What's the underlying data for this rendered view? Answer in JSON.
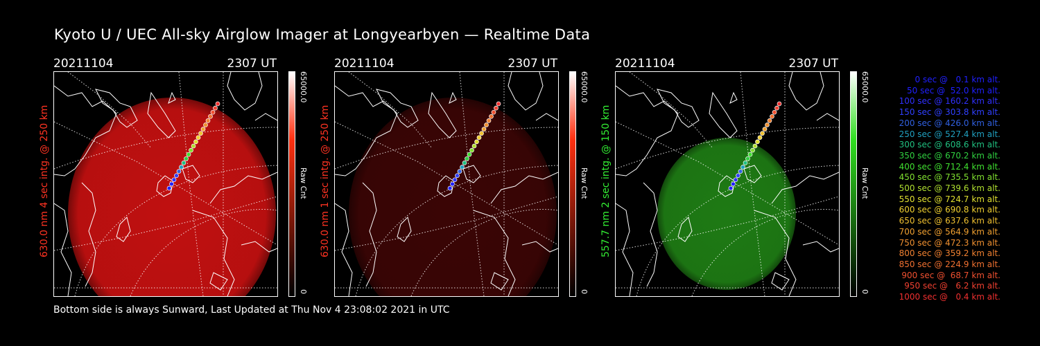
{
  "title": "Kyoto U / UEC All-sky Airglow Imager at Longyearbyen — Realtime Data",
  "footer": "Bottom side is always Sunward, Last Updated at Thu Nov  4 23:08:02 2021 in UTC",
  "panels": [
    {
      "date": "20211104",
      "time": "2307 UT",
      "ylabel": "630.0 nm 4 sec intg. @ 250 km",
      "ylabel_color": "#ff3322",
      "cbar_max": "65000.0",
      "cbar_min": "0",
      "cbar_label": "Raw Cnt",
      "emission_color": "#c01010",
      "cbar_top": "#ff3010",
      "emission_level": 0.55
    },
    {
      "date": "20211104",
      "time": "2307 UT",
      "ylabel": "630.0 nm 1 sec intg. @ 250 km",
      "ylabel_color": "#ff3322",
      "cbar_max": "65000.0",
      "cbar_min": "0",
      "cbar_label": "Raw Cnt",
      "emission_color": "#3a0505",
      "cbar_top": "#ff3010",
      "emission_level": 0.15
    },
    {
      "date": "20211104",
      "time": "2307 UT",
      "ylabel": "557.7 nm 2 sec intg. @ 150 km",
      "ylabel_color": "#33ee33",
      "cbar_max": "65000.0",
      "cbar_min": "0",
      "cbar_label": "Raw Cnt",
      "emission_color": "#1e7a14",
      "cbar_top": "#30e020",
      "emission_level": 0.45
    }
  ],
  "legend": [
    {
      "text": "0 sec @   0.1 km alt.",
      "color": "#2020ff"
    },
    {
      "text": "50 sec @  52.0 km alt.",
      "color": "#2020ff"
    },
    {
      "text": "100 sec @ 160.2 km alt.",
      "color": "#3030ff"
    },
    {
      "text": "150 sec @ 303.8 km alt.",
      "color": "#3040ff"
    },
    {
      "text": "200 sec @ 426.0 km alt.",
      "color": "#3060e0"
    },
    {
      "text": "250 sec @ 527.4 km alt.",
      "color": "#20a0c0"
    },
    {
      "text": "300 sec @ 608.6 km alt.",
      "color": "#20c080"
    },
    {
      "text": "350 sec @ 670.2 km alt.",
      "color": "#30d040"
    },
    {
      "text": "400 sec @ 712.4 km alt.",
      "color": "#40e030"
    },
    {
      "text": "450 sec @ 735.5 km alt.",
      "color": "#80e030"
    },
    {
      "text": "500 sec @ 739.6 km alt.",
      "color": "#b0e030"
    },
    {
      "text": "550 sec @ 724.7 km alt.",
      "color": "#e0e030"
    },
    {
      "text": "600 sec @ 690.8 km alt.",
      "color": "#f0d030"
    },
    {
      "text": "650 sec @ 637.6 km alt.",
      "color": "#f0c030"
    },
    {
      "text": "700 sec @ 564.9 km alt.",
      "color": "#f0a030"
    },
    {
      "text": "750 sec @ 472.3 km alt.",
      "color": "#f09030"
    },
    {
      "text": "800 sec @ 359.2 km alt.",
      "color": "#f08030"
    },
    {
      "text": "850 sec @ 224.9 km alt.",
      "color": "#f07030"
    },
    {
      "text": "900 sec @  68.7 km alt.",
      "color": "#f05030"
    },
    {
      "text": "950 sec @   6.2 km alt.",
      "color": "#f04030"
    },
    {
      "text": "1000 sec @   0.4 km alt.",
      "color": "#f03030"
    }
  ]
}
